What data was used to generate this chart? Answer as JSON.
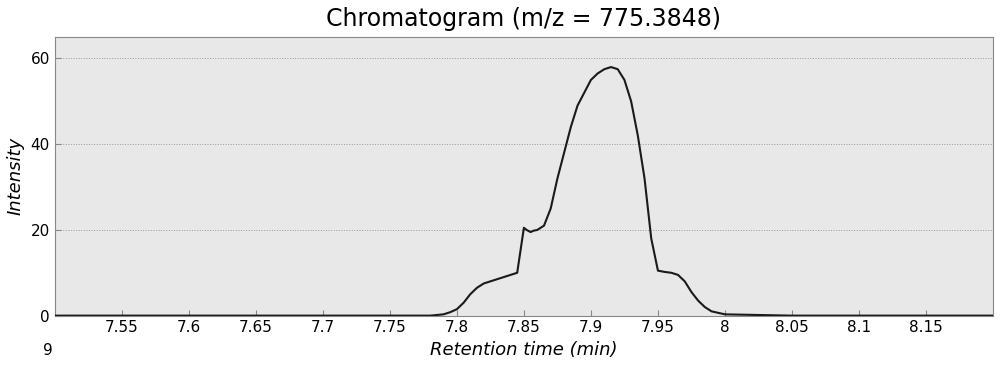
{
  "title": "Chromatogram (m/z = 775.3848)",
  "xlabel": "Retention time (min)",
  "ylabel": "Intensity",
  "xlim": [
    7.5,
    8.2
  ],
  "ylim": [
    0,
    65
  ],
  "yticks": [
    0,
    20,
    40,
    60
  ],
  "xticks": [
    7.55,
    7.6,
    7.65,
    7.7,
    7.75,
    7.8,
    7.85,
    7.9,
    7.95,
    8.0,
    8.05,
    8.1,
    8.15
  ],
  "xtick_labels": [
    "7.55",
    "7.6",
    "7.65",
    "7.7",
    "7.75",
    "7.8",
    "7.85",
    "7.9",
    "7.95",
    "8",
    "8.05",
    "8.1",
    "8.15"
  ],
  "line_color": "#1a1a1a",
  "fig_background": "#ffffff",
  "plot_background": "#e8e8e8",
  "title_fontsize": 17,
  "axis_label_fontsize": 13,
  "tick_fontsize": 11,
  "x": [
    7.5,
    7.55,
    7.6,
    7.65,
    7.7,
    7.75,
    7.77,
    7.78,
    7.79,
    7.795,
    7.8,
    7.805,
    7.81,
    7.815,
    7.82,
    7.83,
    7.835,
    7.84,
    7.845,
    7.85,
    7.852,
    7.855,
    7.857,
    7.86,
    7.865,
    7.87,
    7.875,
    7.88,
    7.885,
    7.89,
    7.895,
    7.9,
    7.905,
    7.91,
    7.915,
    7.92,
    7.925,
    7.93,
    7.935,
    7.94,
    7.945,
    7.95,
    7.955,
    7.96,
    7.965,
    7.97,
    7.975,
    7.98,
    7.985,
    7.99,
    8.0,
    8.05,
    8.1,
    8.15,
    8.2
  ],
  "y": [
    0.0,
    0.0,
    0.0,
    0.0,
    0.0,
    0.0,
    0.0,
    0.0,
    0.3,
    0.8,
    1.5,
    3.0,
    5.0,
    6.5,
    7.5,
    8.5,
    9.0,
    9.5,
    10.0,
    20.5,
    20.0,
    19.5,
    19.8,
    20.0,
    21.0,
    25.0,
    32.0,
    38.0,
    44.0,
    49.0,
    52.0,
    55.0,
    56.5,
    57.5,
    58.0,
    57.5,
    55.0,
    50.0,
    42.0,
    32.0,
    18.0,
    10.5,
    10.2,
    10.0,
    9.5,
    8.0,
    5.5,
    3.5,
    2.0,
    1.0,
    0.3,
    0.0,
    0.0,
    0.0,
    0.0
  ]
}
